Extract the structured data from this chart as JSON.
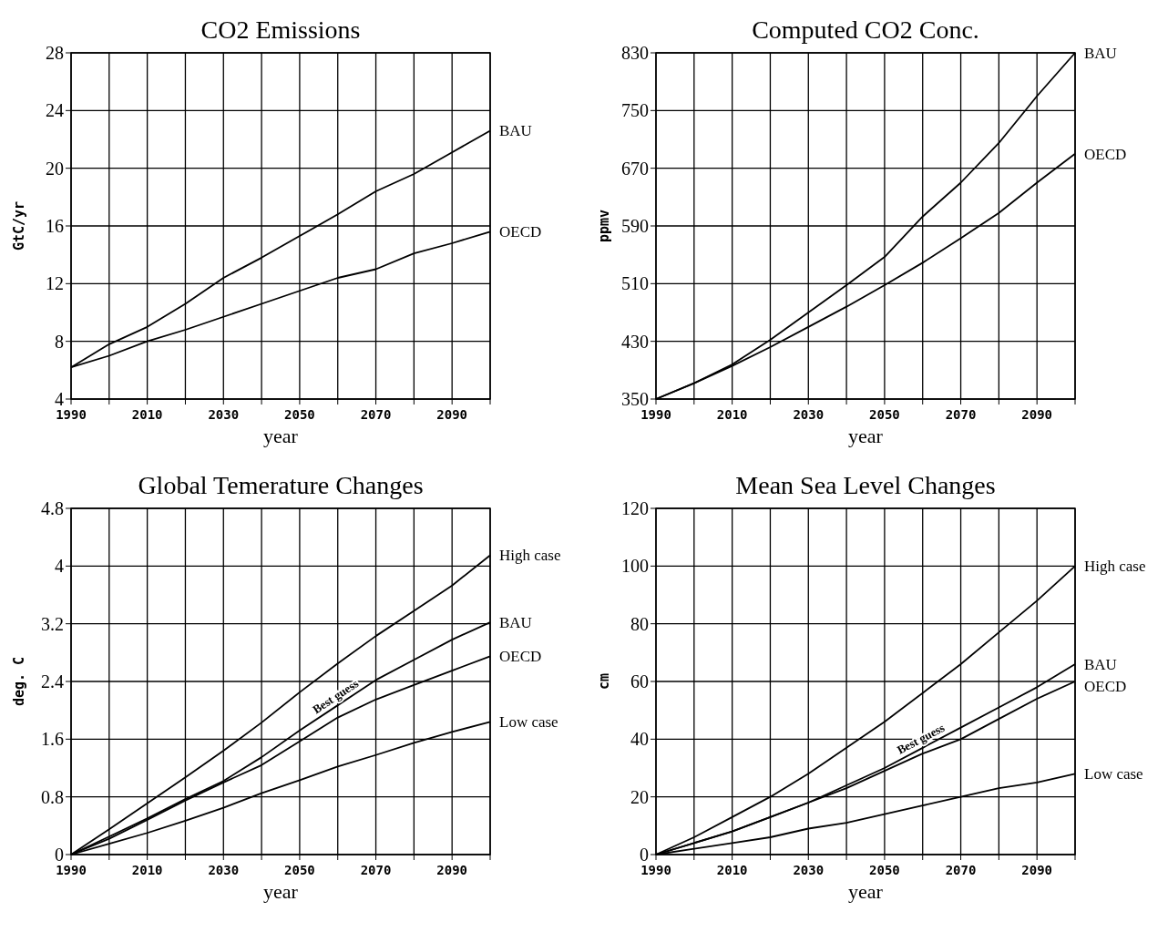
{
  "chart_data": [
    {
      "type": "line",
      "title": "CO2 Emissions",
      "xlabel": "year",
      "ylabel": "GtC/yr",
      "x": [
        1990,
        2000,
        2010,
        2020,
        2030,
        2040,
        2050,
        2060,
        2070,
        2080,
        2090,
        2100
      ],
      "xlim": [
        1990,
        2100
      ],
      "xticks": [
        1990,
        {
          "value": 2000,
          "label": null
        },
        2010,
        {
          "value": 2020,
          "label": null
        },
        2030,
        {
          "value": 2040,
          "label": null
        },
        2050,
        {
          "value": 2060,
          "label": null
        },
        2070,
        {
          "value": 2080,
          "label": null
        },
        2090,
        {
          "value": 2100,
          "label": null
        }
      ],
      "ylim": [
        4,
        28
      ],
      "yticks": [
        4,
        8,
        12,
        16,
        20,
        24,
        28
      ],
      "grid": true,
      "marker": "none",
      "line_style": "solid",
      "series": [
        {
          "name": "BAU",
          "color": "#000000",
          "values": [
            6.2,
            7.8,
            9.0,
            10.6,
            12.4,
            13.8,
            15.3,
            16.8,
            18.4,
            19.6,
            21.1,
            22.6
          ]
        },
        {
          "name": "OECD",
          "color": "#000000",
          "values": [
            6.2,
            7.0,
            8.0,
            8.8,
            9.7,
            10.6,
            11.5,
            12.4,
            13.0,
            14.1,
            14.8,
            15.6
          ]
        }
      ]
    },
    {
      "type": "line",
      "title": "Computed CO2 Conc.",
      "xlabel": "year",
      "ylabel": "ppmv",
      "x": [
        1990,
        2000,
        2010,
        2020,
        2030,
        2040,
        2050,
        2060,
        2070,
        2080,
        2090,
        2100
      ],
      "xlim": [
        1990,
        2100
      ],
      "xticks": [
        1990,
        {
          "value": 2000,
          "label": null
        },
        2010,
        {
          "value": 2020,
          "label": null
        },
        2030,
        {
          "value": 2040,
          "label": null
        },
        2050,
        {
          "value": 2060,
          "label": null
        },
        2070,
        {
          "value": 2080,
          "label": null
        },
        2090,
        {
          "value": 2100,
          "label": null
        }
      ],
      "ylim": [
        350,
        830
      ],
      "yticks": [
        350,
        430,
        510,
        590,
        670,
        750,
        830
      ],
      "grid": true,
      "marker": "none",
      "line_style": "solid",
      "series": [
        {
          "name": "BAU",
          "color": "#000000",
          "values": [
            350,
            372,
            398,
            432,
            470,
            508,
            547,
            603,
            650,
            705,
            770,
            830
          ]
        },
        {
          "name": "OECD",
          "color": "#000000",
          "values": [
            350,
            372,
            396,
            422,
            450,
            478,
            508,
            539,
            573,
            608,
            650,
            690
          ]
        }
      ]
    },
    {
      "type": "line",
      "title": "Global Temerature Changes",
      "xlabel": "year",
      "ylabel": "deg. C",
      "annotations": [
        "Best guess"
      ],
      "x": [
        1990,
        2000,
        2010,
        2020,
        2030,
        2040,
        2050,
        2060,
        2070,
        2080,
        2090,
        2100
      ],
      "xlim": [
        1990,
        2100
      ],
      "xticks": [
        1990,
        {
          "value": 2000,
          "label": null
        },
        2010,
        {
          "value": 2020,
          "label": null
        },
        2030,
        {
          "value": 2040,
          "label": null
        },
        2050,
        {
          "value": 2060,
          "label": null
        },
        2070,
        {
          "value": 2080,
          "label": null
        },
        2090,
        {
          "value": 2100,
          "label": null
        }
      ],
      "ylim": [
        0,
        4.8
      ],
      "yticks": [
        0,
        0.8,
        1.6,
        2.4,
        3.2,
        4,
        4.8
      ],
      "grid": true,
      "marker": "none",
      "line_style": "solid",
      "series": [
        {
          "name": "High case",
          "color": "#000000",
          "values": [
            0,
            0.35,
            0.71,
            1.07,
            1.44,
            1.83,
            2.25,
            2.65,
            3.03,
            3.38,
            3.73,
            4.15
          ]
        },
        {
          "name": "BAU",
          "color": "#000000",
          "values": [
            0,
            0.25,
            0.5,
            0.77,
            1.02,
            1.35,
            1.72,
            2.07,
            2.42,
            2.7,
            2.98,
            3.22
          ]
        },
        {
          "name": "OECD",
          "color": "#000000",
          "values": [
            0,
            0.22,
            0.48,
            0.75,
            1.0,
            1.24,
            1.57,
            1.9,
            2.15,
            2.35,
            2.55,
            2.75
          ]
        },
        {
          "name": "Low case",
          "color": "#000000",
          "values": [
            0,
            0.15,
            0.3,
            0.47,
            0.65,
            0.85,
            1.03,
            1.22,
            1.38,
            1.55,
            1.7,
            1.84
          ]
        }
      ]
    },
    {
      "type": "line",
      "title": "Mean Sea Level Changes",
      "xlabel": "year",
      "ylabel": "cm",
      "annotations": [
        "Best guess"
      ],
      "x": [
        1990,
        2000,
        2010,
        2020,
        2030,
        2040,
        2050,
        2060,
        2070,
        2080,
        2090,
        2100
      ],
      "xlim": [
        1990,
        2100
      ],
      "xticks": [
        1990,
        {
          "value": 2000,
          "label": null
        },
        2010,
        {
          "value": 2020,
          "label": null
        },
        2030,
        {
          "value": 2040,
          "label": null
        },
        2050,
        {
          "value": 2060,
          "label": null
        },
        2070,
        {
          "value": 2080,
          "label": null
        },
        2090,
        {
          "value": 2100,
          "label": null
        }
      ],
      "ylim": [
        0,
        120
      ],
      "yticks": [
        0,
        20,
        40,
        60,
        80,
        100,
        120
      ],
      "grid": true,
      "marker": "none",
      "line_style": "solid",
      "series": [
        {
          "name": "High case",
          "color": "#000000",
          "values": [
            0,
            6,
            13,
            20,
            28,
            37,
            46,
            56,
            66,
            77,
            88,
            100
          ]
        },
        {
          "name": "BAU",
          "color": "#000000",
          "values": [
            0,
            4,
            8,
            13,
            18,
            24,
            30,
            37,
            44,
            51,
            58,
            66
          ]
        },
        {
          "name": "OECD",
          "color": "#000000",
          "values": [
            0,
            4,
            8,
            13,
            18,
            23,
            29,
            35,
            40,
            47,
            54,
            60
          ]
        },
        {
          "name": "Low case",
          "color": "#000000",
          "values": [
            0,
            2,
            4,
            6,
            9,
            11,
            14,
            17,
            20,
            23,
            25,
            28
          ]
        }
      ]
    }
  ]
}
